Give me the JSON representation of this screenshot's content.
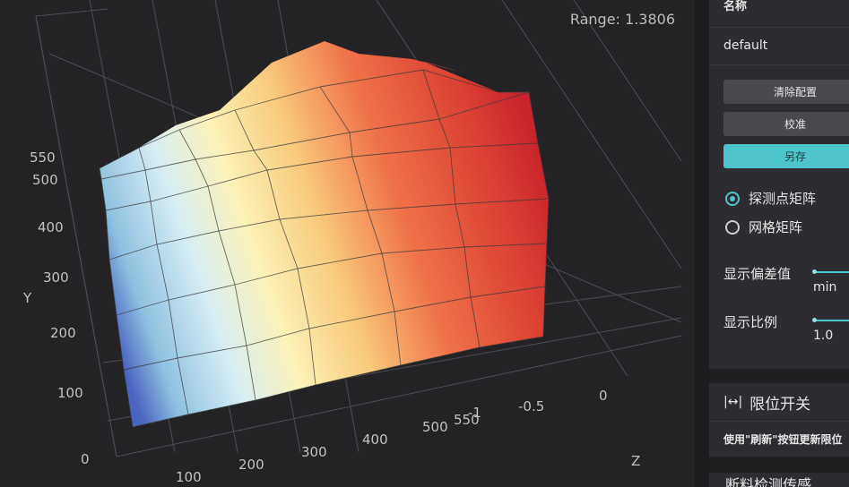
{
  "viewport": {
    "range_label": "Range: 1.3806",
    "axis_y_title": "Y",
    "axis_z_title": "Z",
    "y_ticks": [
      "550",
      "500",
      "400",
      "300",
      "200",
      "100",
      "0"
    ],
    "x_ticks": [
      "100",
      "200",
      "300",
      "400",
      "500",
      "550"
    ],
    "z_ticks": [
      "-1",
      "-0.5",
      "0"
    ]
  },
  "panel": {
    "name_header": "名称",
    "name_value": "default",
    "clear_button": "清除配置",
    "calibrate_button": "校准",
    "save_as_button": "另存",
    "radio_probe": "探测点矩阵",
    "radio_grid": "网格矩阵",
    "show_deviation_label": "显示偏差值",
    "show_deviation_value": "min",
    "show_ratio_label": "显示比例",
    "show_ratio_value": "1.0",
    "limit_title": "限位开关",
    "limit_icon": "|↔|",
    "limit_desc": "使用\"刷新\"按钮更新限位",
    "bottom_title": "断料检测传感"
  },
  "colors": {
    "accent": "#4ec5cc"
  }
}
